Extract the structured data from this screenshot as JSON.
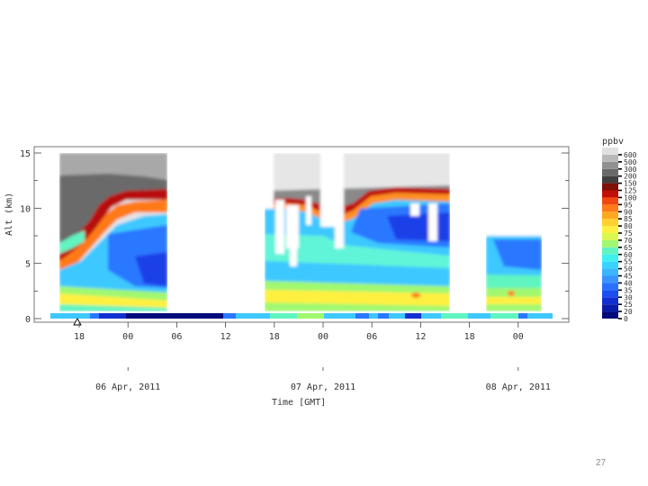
{
  "chart_data": {
    "type": "heatmap",
    "title": "",
    "xlabel": "Time [GMT]",
    "ylabel": "Alt (km)",
    "ylim": [
      0,
      15
    ],
    "y_ticks": [
      "0",
      "5",
      "10",
      "15"
    ],
    "x_ticks": [
      "18",
      "00",
      "06",
      "12",
      "18",
      "00",
      "06",
      "12",
      "18",
      "00"
    ],
    "date_labels": [
      "06 Apr, 2011",
      "07 Apr, 2011",
      "08 Apr, 2011"
    ],
    "colorbar": {
      "unit": "ppbv",
      "levels": [
        "0",
        "20",
        "25",
        "30",
        "35",
        "40",
        "45",
        "50",
        "55",
        "60",
        "65",
        "70",
        "75",
        "80",
        "85",
        "90",
        "95",
        "100",
        "125",
        "150",
        "200",
        "300",
        "500",
        "600"
      ],
      "colors": [
        "#000a7a",
        "#0a1ca8",
        "#1230d0",
        "#1a4ef0",
        "#2a70ff",
        "#3a92ff",
        "#3cb4ff",
        "#38d4ff",
        "#3ef0f0",
        "#60f4c0",
        "#a0f870",
        "#d8f850",
        "#fff040",
        "#ffd030",
        "#ffa820",
        "#ff7a18",
        "#f04810",
        "#c01008",
        "#801008",
        "#404040",
        "#6a6a6a",
        "#909090",
        "#b8b8b8",
        "#e0e0e0"
      ]
    },
    "data_gaps": [
      {
        "from": "07 Apr 05:00",
        "to": "07 Apr 16:30"
      },
      {
        "from": "08 Apr 12:00",
        "to": "08 Apr 16:30"
      }
    ],
    "description_series": [
      {
        "time": "06 Apr 15:00",
        "tropopause_km": 5.5
      },
      {
        "time": "06 Apr 18:00",
        "tropopause_km": 7.0
      },
      {
        "time": "06 Apr 21:00",
        "tropopause_km": 9.5
      },
      {
        "time": "07 Apr 00:00",
        "tropopause_km": 11.3
      },
      {
        "time": "07 Apr 05:00",
        "tropopause_km": 12.0
      },
      {
        "time": "07 Apr 18:00",
        "tropopause_km": 10.5
      },
      {
        "time": "08 Apr 00:00",
        "tropopause_km": 10.3
      },
      {
        "time": "08 Apr 06:00",
        "tropopause_km": 12.2
      },
      {
        "time": "08 Apr 12:00",
        "tropopause_km": 12.5
      },
      {
        "time": "09 Apr 02:00",
        "tropopause_km": 12.0
      }
    ]
  },
  "slide": {
    "page_number": "27"
  }
}
